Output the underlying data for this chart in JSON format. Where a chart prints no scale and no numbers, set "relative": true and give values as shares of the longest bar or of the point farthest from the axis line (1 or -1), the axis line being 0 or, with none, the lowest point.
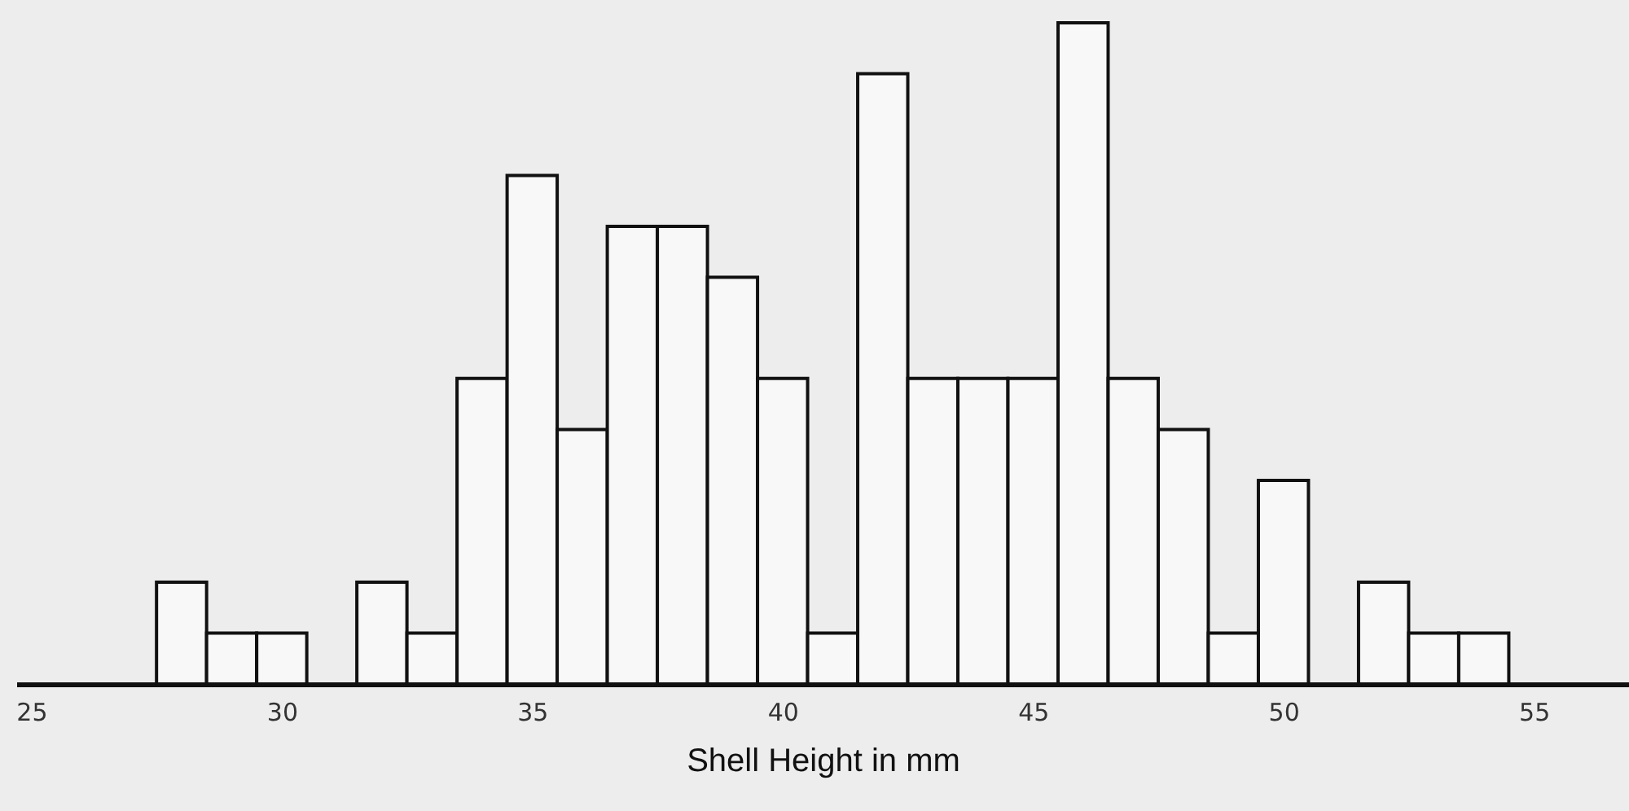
{
  "chart_data": {
    "type": "bar",
    "xlabel": "Shell Height in mm",
    "relative": true,
    "x": [
      28,
      29,
      30,
      31,
      32,
      33,
      34,
      35,
      36,
      37,
      38,
      39,
      40,
      41,
      42,
      43,
      44,
      45,
      46,
      47,
      48,
      49,
      50,
      51,
      52,
      53,
      54
    ],
    "values": [
      0.154,
      0.077,
      0.077,
      0,
      0.154,
      0.077,
      0.462,
      0.769,
      0.385,
      0.692,
      0.692,
      0.615,
      0.462,
      0.077,
      0.923,
      0.462,
      0.462,
      0.462,
      1,
      0.462,
      0.385,
      0.077,
      0.308,
      0,
      0.154,
      0.077,
      0.077
    ],
    "xlim": [
      24.7,
      56.9
    ],
    "xticks": [
      25,
      30,
      35,
      40,
      45,
      50,
      55
    ]
  }
}
